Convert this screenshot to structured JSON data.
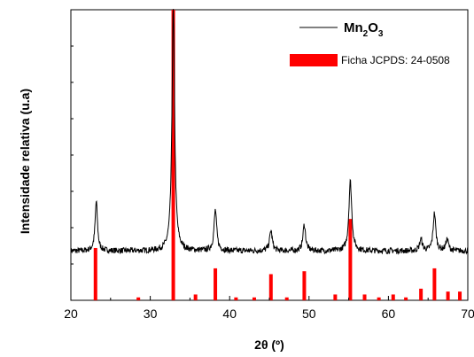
{
  "chart_data": {
    "type": "line",
    "xlabel": "2θ (º)",
    "ylabel": "Intensidade relativa (u.a)",
    "xlim": [
      20,
      70
    ],
    "ylim": [
      0,
      1
    ],
    "xticks": [
      20,
      30,
      40,
      50,
      60,
      70
    ],
    "xtick_labels": [
      "20",
      "30",
      "40",
      "50",
      "60",
      "70"
    ],
    "y_tick_labels_shown": false,
    "grid": false,
    "legend": {
      "placement": "top-right",
      "entries": [
        {
          "type": "line",
          "color": "#000000",
          "label_base": "Mn",
          "label_sub1": "2",
          "label_mid": "O",
          "label_sub2": "3"
        },
        {
          "type": "bar",
          "color": "#ff0000",
          "label": "Ficha JCPDS: 24-0508"
        }
      ]
    },
    "series": [
      {
        "name": "Mn2O3",
        "kind": "line",
        "color": "#000000",
        "baseline": 0.17,
        "noise": 0.01,
        "peaks": [
          {
            "x": 23.2,
            "height": 0.17,
            "width": 0.18
          },
          {
            "x": 32.9,
            "height": 0.83,
            "width": 0.2
          },
          {
            "x": 38.2,
            "height": 0.14,
            "width": 0.2
          },
          {
            "x": 45.2,
            "height": 0.07,
            "width": 0.2
          },
          {
            "x": 49.4,
            "height": 0.09,
            "width": 0.2
          },
          {
            "x": 55.2,
            "height": 0.24,
            "width": 0.22
          },
          {
            "x": 64.1,
            "height": 0.04,
            "width": 0.2
          },
          {
            "x": 65.8,
            "height": 0.13,
            "width": 0.2
          },
          {
            "x": 67.4,
            "height": 0.04,
            "width": 0.2
          }
        ]
      },
      {
        "name": "Ficha JCPDS: 24-0508",
        "kind": "stick",
        "color": "#ff0000",
        "x": [
          23.1,
          28.5,
          32.9,
          35.7,
          38.2,
          40.8,
          43.1,
          45.2,
          47.2,
          49.4,
          53.3,
          55.2,
          57.0,
          58.8,
          60.6,
          62.2,
          64.1,
          65.8,
          67.5,
          69.0
        ],
        "values": [
          0.18,
          0.01,
          1.0,
          0.02,
          0.11,
          0.01,
          0.01,
          0.09,
          0.01,
          0.1,
          0.02,
          0.28,
          0.02,
          0.01,
          0.02,
          0.01,
          0.04,
          0.11,
          0.03,
          0.03
        ]
      }
    ]
  }
}
